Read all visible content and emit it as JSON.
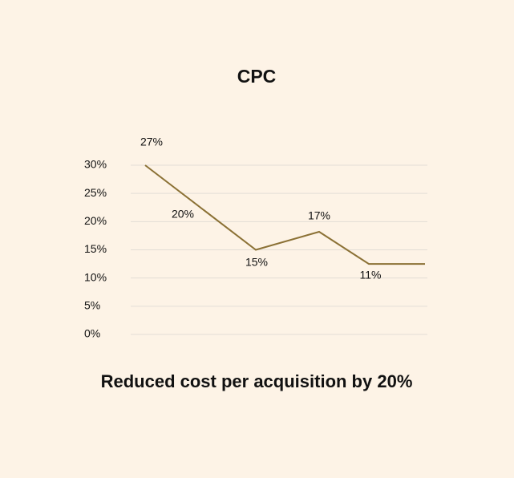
{
  "chart_data": {
    "type": "line",
    "title": "CPC",
    "caption": "Reduced cost per acquisition by 20%",
    "categories": [
      null,
      null,
      null,
      null,
      null
    ],
    "series": [
      {
        "name": null,
        "color": "#8b7135",
        "values": [
          30,
          15,
          18.2,
          12.5,
          12.5
        ]
      }
    ],
    "annotations": [
      "27%",
      "20%",
      "15%",
      "17%",
      "11%"
    ],
    "ylim": [
      0,
      30
    ],
    "yticks": [
      {
        "value": 0,
        "label": "0%"
      },
      {
        "value": 5,
        "label": "5%"
      },
      {
        "value": 10,
        "label": "10%"
      },
      {
        "value": 15,
        "label": "15%"
      },
      {
        "value": 20,
        "label": "20%"
      },
      {
        "value": 25,
        "label": "25%"
      },
      {
        "value": 30,
        "label": "30%"
      }
    ],
    "grid": true
  }
}
